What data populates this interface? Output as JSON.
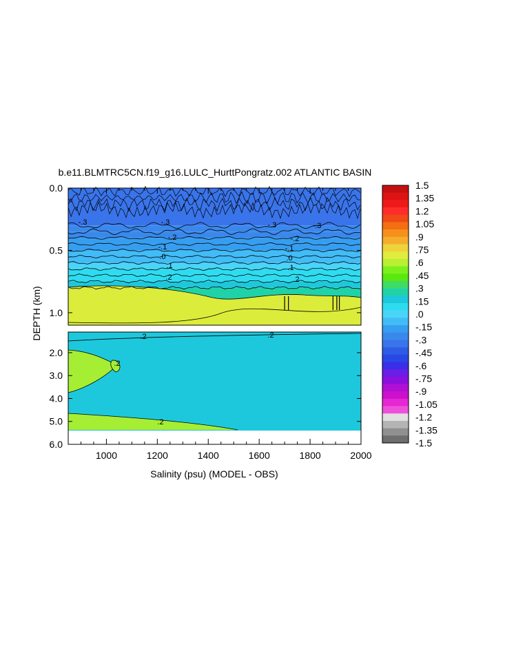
{
  "chart_data": {
    "type": "heatmap",
    "title": "b.e11.BLMTRC5CN.f19_g16.LULC_HurttPongratz.002 ATLANTIC BASIN",
    "xlabel": "Salinity (psu) (MODEL - OBS)",
    "ylabel": "DEPTH (km)",
    "x_range": [
      850,
      2000
    ],
    "x_ticks": [
      "1000",
      "1200",
      "1400",
      "1600",
      "1800",
      "2000"
    ],
    "upper_panel": {
      "depth_range_km": [
        0.0,
        1.1
      ],
      "y_ticks": [
        "0.0",
        "0.5",
        "1.0"
      ],
      "bands": [
        {
          "depth_from": 0.0,
          "depth_to": 0.3,
          "value": -0.35
        },
        {
          "depth_from": 0.3,
          "depth_to": 0.35,
          "value": -0.3
        },
        {
          "depth_from": 0.35,
          "depth_to": 0.4,
          "value": -0.25
        },
        {
          "depth_from": 0.4,
          "depth_to": 0.45,
          "value": -0.2
        },
        {
          "depth_from": 0.45,
          "depth_to": 0.5,
          "value": -0.15
        },
        {
          "depth_from": 0.5,
          "depth_to": 0.55,
          "value": -0.1
        },
        {
          "depth_from": 0.55,
          "depth_to": 0.6,
          "value": -0.05
        },
        {
          "depth_from": 0.6,
          "depth_to": 0.65,
          "value": 0.0
        },
        {
          "depth_from": 0.65,
          "depth_to": 0.7,
          "value": 0.05
        },
        {
          "depth_from": 0.7,
          "depth_to": 0.75,
          "value": 0.1
        },
        {
          "depth_from": 0.75,
          "depth_to": 0.8,
          "value": 0.15
        },
        {
          "depth_from": 0.8,
          "depth_to": 1.1,
          "value": 0.25
        }
      ],
      "contour_labels": [
        "-.3",
        "-.3",
        "-.3",
        "-.3",
        "-.2",
        "-.2",
        "-.1",
        "-.1",
        ".0",
        ".0",
        ".1",
        ".1",
        ".2",
        ".2"
      ]
    },
    "lower_panel": {
      "depth_range_km": [
        1.1,
        6.0
      ],
      "y_ticks": [
        "2.0",
        "3.0",
        "4.0",
        "5.0",
        "6.0"
      ],
      "background_value": 0.2,
      "data_bottom_km": 5.4,
      "contour_labels": [
        ".2",
        ".2",
        ".2",
        ".2"
      ]
    },
    "colorbar": {
      "labels": [
        "1.5",
        "1.35",
        "1.2",
        "1.05",
        ".9",
        ".75",
        ".6",
        ".45",
        ".3",
        ".15",
        ".0",
        "-.15",
        "-.3",
        "-.45",
        "-.6",
        "-.75",
        "-.9",
        "-1.05",
        "-1.2",
        "-1.35",
        "-1.5"
      ],
      "colors": [
        "#c41010",
        "#dc1414",
        "#ee1a1a",
        "#ff2c2c",
        "#f04a18",
        "#f46e12",
        "#f6901a",
        "#f4ae2c",
        "#eed43a",
        "#e2ec3e",
        "#b8f034",
        "#7cf01c",
        "#5ae80e",
        "#3edc66",
        "#20d2a8",
        "#1ec8dc",
        "#2edcf0",
        "#4ad4f8",
        "#42bcf6",
        "#369ef0",
        "#3a88ec",
        "#3a74ea",
        "#2e5ce6",
        "#2848e6",
        "#3a2ee8",
        "#6a1ee6",
        "#8c10dc",
        "#b010d4",
        "#cc10cc",
        "#e428d4",
        "#ee50dc",
        "#e0e0e0",
        "#b4b4b4",
        "#909090",
        "#6e6e6e"
      ]
    }
  }
}
